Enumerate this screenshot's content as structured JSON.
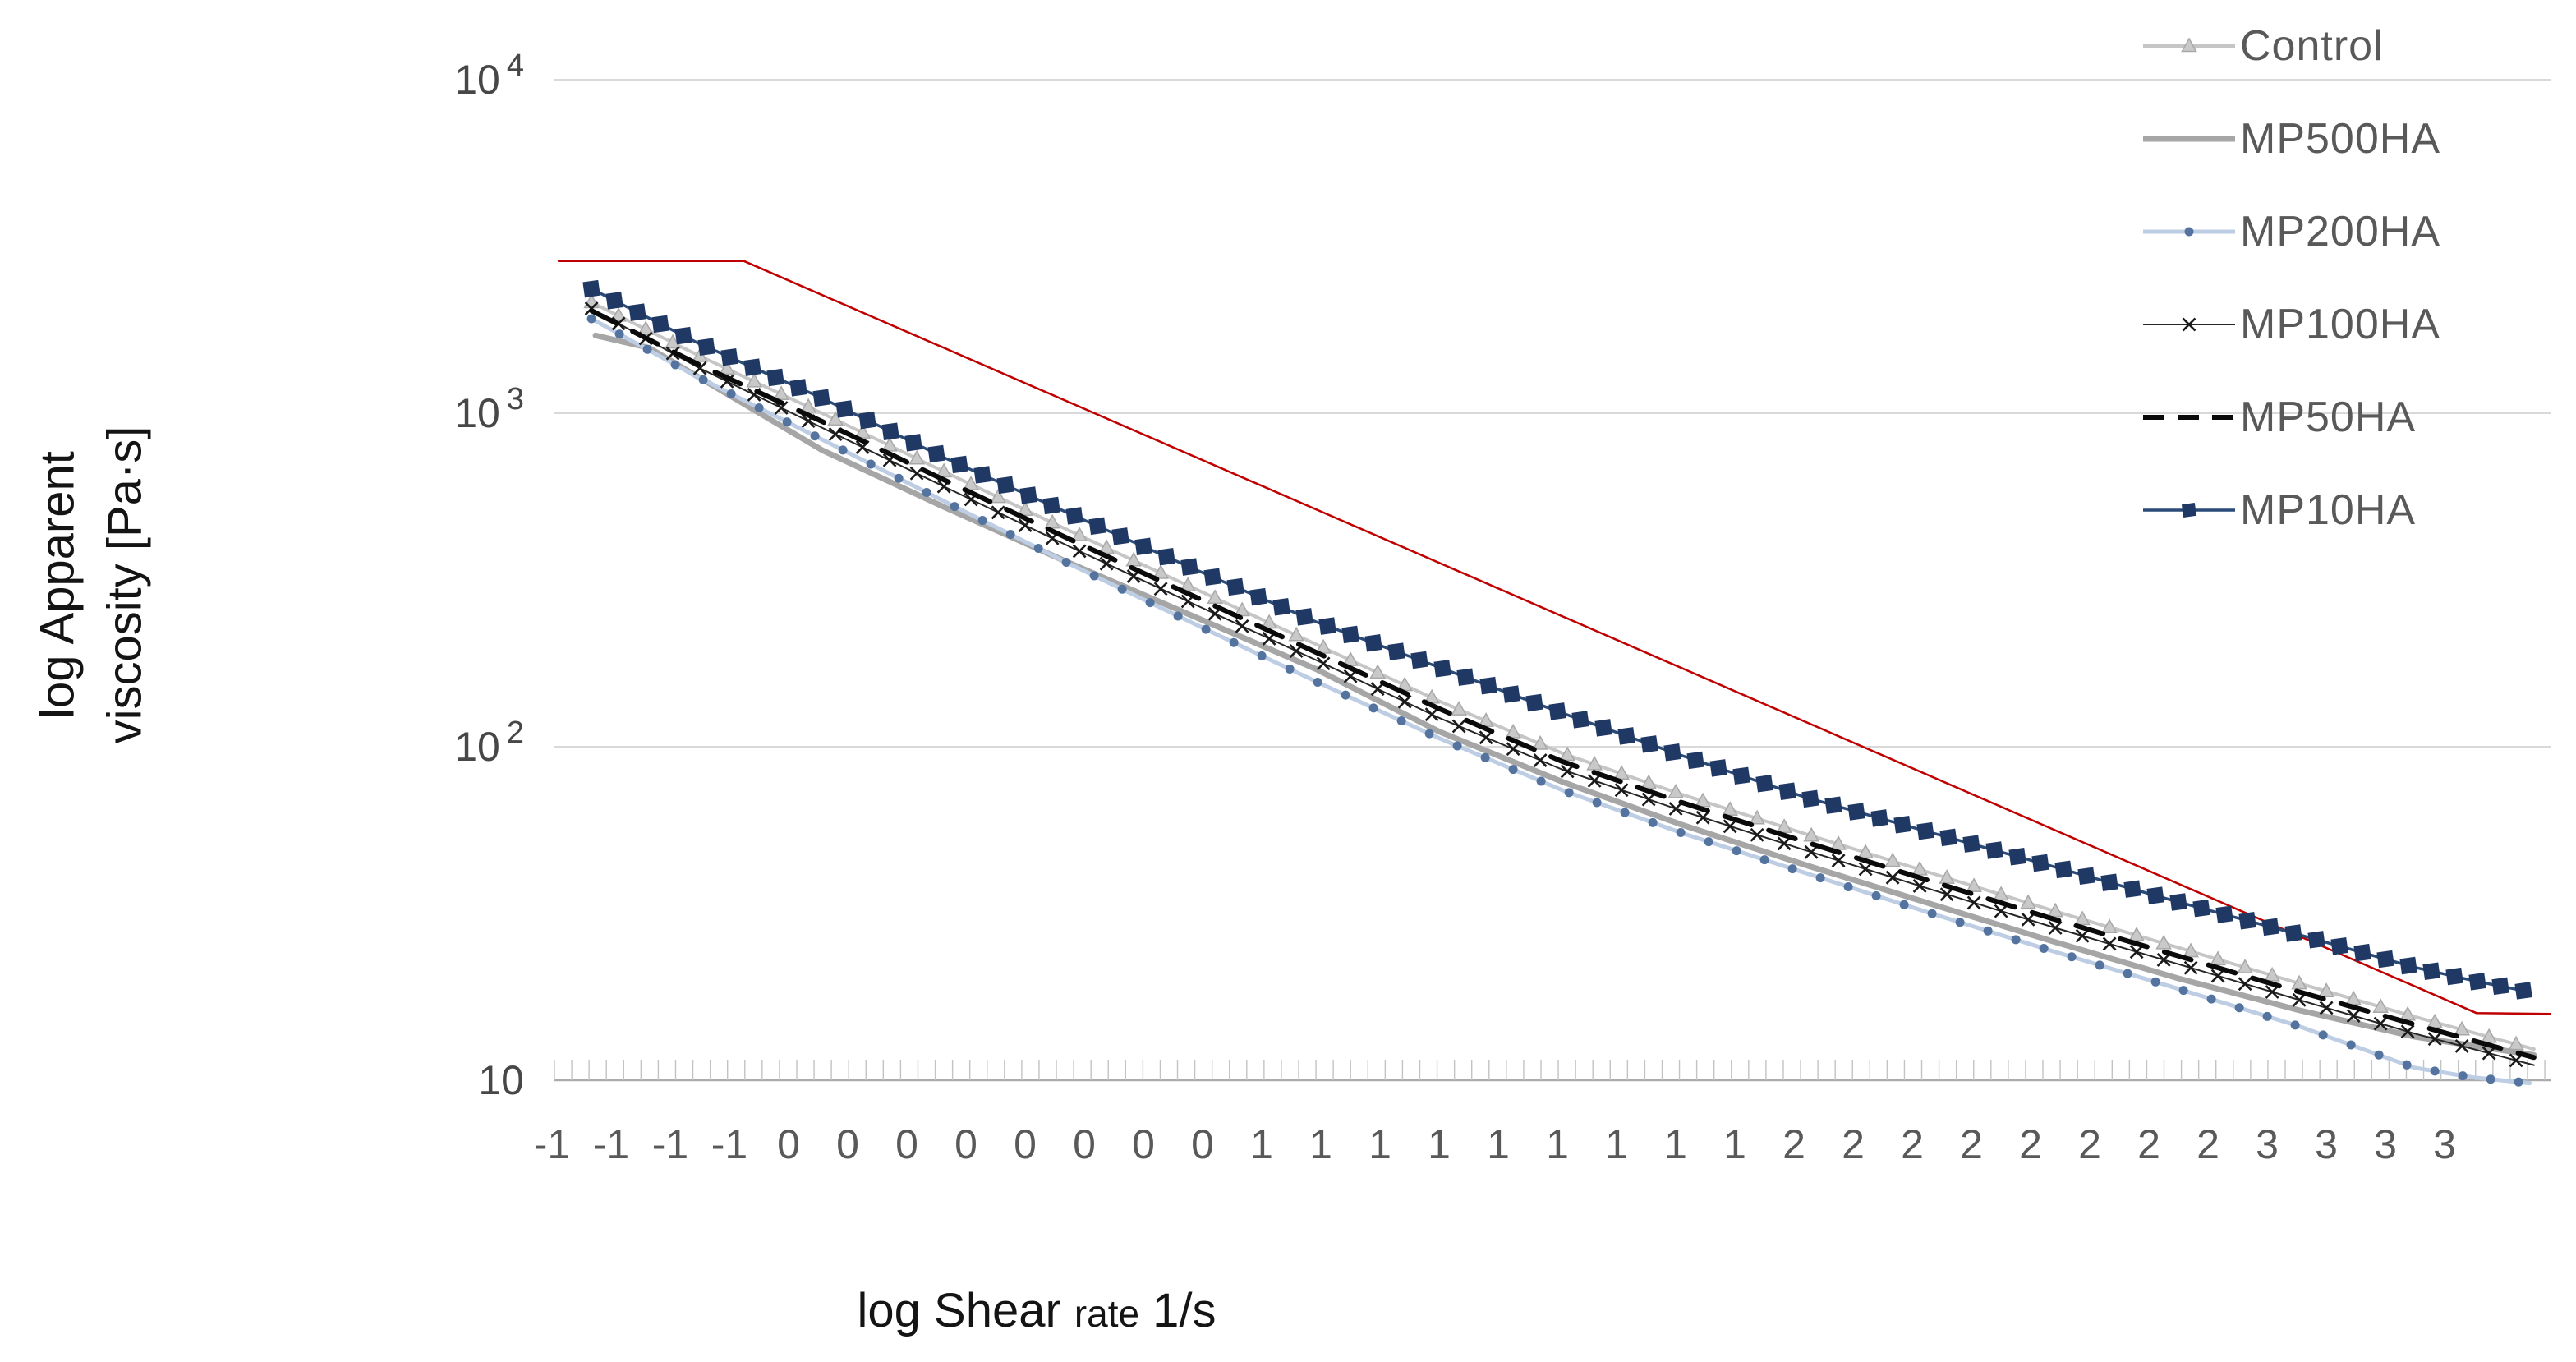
{
  "chart": {
    "y_axis": {
      "title_lines": [
        "log Apparent",
        "viscosity [Pa·s]"
      ],
      "tick_labels": [
        {
          "base": "10",
          "exp": "4"
        },
        {
          "base": "10",
          "exp": "3"
        },
        {
          "base": "10",
          "exp": "2"
        },
        {
          "base": "10",
          "exp": ""
        }
      ]
    },
    "x_axis": {
      "title_prefix": "log Shear",
      "title_small": "rate",
      "title_suffix": "1/s",
      "tick_labels": [
        "-1",
        "-1",
        "-1",
        "-1",
        "0",
        "0",
        "0",
        "0",
        "0",
        "0",
        "0",
        "0",
        "1",
        "1",
        "1",
        "1",
        "1",
        "1",
        "1",
        "1",
        "1",
        "2",
        "2",
        "2",
        "2",
        "2",
        "2",
        "2",
        "2",
        "3",
        "3",
        "3",
        "3"
      ]
    },
    "legend": [
      "Control",
      "MP500HA",
      "MP200HA",
      "MP100HA",
      "MP50HA",
      "MP10HA"
    ],
    "colors": {
      "grid": "#D9D9D9",
      "axis_line": "#ABABAB",
      "minor_tick": "#C3C3C3",
      "tick_text": "#595959",
      "title_text": "#141414",
      "reference_red": "#C00000"
    }
  },
  "chart_data": {
    "type": "line",
    "title": "",
    "xlabel": "log Shear rate 1/s",
    "ylabel": "log Apparent viscosity [Pa·s]",
    "y_scale": "log10",
    "ylim": [
      10,
      10000
    ],
    "xlim_log_shear": [
      -1.35,
      3.6
    ],
    "grid": "horizontal decade gridlines only",
    "legend_position": "top-right",
    "x_axis_note": "category tick labels are rounded log10(shear rate) values",
    "series": [
      {
        "name": "(unlabeled red reference line)",
        "in_legend": false,
        "color": "#C00000",
        "line": "solid",
        "width": 2.5,
        "marker": "none",
        "log_shear_rate": [
          -1.25,
          -0.8,
          3.41,
          3.59
        ],
        "viscosity_pa_s": [
          2860,
          2860,
          15.9,
          15.8
        ]
      },
      {
        "name": "Control",
        "in_legend": true,
        "color": "#C6C6C6",
        "line": "solid",
        "width": 4,
        "marker": "triangle",
        "marker_color": "#C9C9C9",
        "marker_edge": "#A8A8A8",
        "marker_size": 9,
        "marker_step_px": 33,
        "log_shear_rate": [
          -1.17,
          -0.91,
          -0.61,
          -0.31,
          -0.01,
          0.29,
          0.59,
          0.89,
          1.19,
          1.48,
          1.78,
          2.08,
          2.38,
          2.68,
          2.98,
          3.26,
          3.55
        ],
        "viscosity_pa_s": [
          2150,
          1490,
          1000,
          665,
          445,
          300,
          203,
          137,
          95.5,
          71.9,
          54.8,
          42,
          32.3,
          25.1,
          19.5,
          15.5,
          12.4
        ]
      },
      {
        "name": "MP500HA",
        "in_legend": true,
        "color": "#A6A6A6",
        "line": "solid",
        "width": 7,
        "marker": "none",
        "log_shear_rate": [
          -1.16,
          -1.03,
          -0.61,
          -0.31,
          -0.01,
          0.29,
          0.59,
          0.89,
          1.19,
          1.48,
          1.78,
          2.08,
          2.38,
          2.68,
          2.98,
          3.26,
          3.55
        ],
        "viscosity_pa_s": [
          1710,
          1570,
          775,
          521,
          356,
          247,
          171,
          111,
          78.4,
          58.3,
          44.2,
          33.9,
          26.1,
          20.3,
          16.2,
          13.5,
          11.9
        ]
      },
      {
        "name": "MP200HA",
        "in_legend": true,
        "color": "#BDCDE4",
        "line": "solid",
        "width": 5,
        "marker": "circle",
        "marker_color": "#54749F",
        "marker_size": 5.5,
        "marker_step_px": 34,
        "log_shear_rate": [
          -1.17,
          -0.91,
          -0.61,
          -0.31,
          -0.01,
          0.29,
          0.59,
          0.89,
          1.19,
          1.48,
          1.78,
          2.08,
          2.38,
          2.68,
          2.98,
          3.26,
          3.4,
          3.54
        ],
        "viscosity_pa_s": [
          1920,
          1280,
          834,
          542,
          354,
          235,
          157,
          106,
          74,
          55.1,
          41.8,
          31.8,
          24.4,
          18.9,
          14.5,
          10.9,
          10.2,
          9.8
        ]
      },
      {
        "name": "MP100HA",
        "in_legend": true,
        "color": "#262626",
        "line": "solid",
        "width": 2,
        "marker": "x",
        "marker_color": "#1A1A1A",
        "marker_size": 7.5,
        "marker_step_px": 33,
        "log_shear_rate": [
          -1.17,
          -0.91,
          -0.61,
          -0.31,
          -0.01,
          0.29,
          0.59,
          0.89,
          1.19,
          1.48,
          1.78,
          2.08,
          2.38,
          2.68,
          2.98,
          3.26,
          3.55
        ],
        "viscosity_pa_s": [
          2060,
          1370,
          905,
          600,
          399,
          269,
          182,
          122,
          85.3,
          64.2,
          48.9,
          37.5,
          28.8,
          22.4,
          17.4,
          13.8,
          11.1
        ]
      },
      {
        "name": "MP50HA",
        "in_legend": true,
        "color": "#0A0A0A",
        "line": "dashed",
        "dash": [
          34,
          22
        ],
        "width": 6,
        "marker": "none",
        "log_shear_rate": [
          -1.17,
          -0.91,
          -0.61,
          -0.31,
          -0.01,
          0.29,
          0.59,
          0.89,
          1.19,
          1.48,
          1.78,
          2.08,
          2.38,
          2.68,
          2.98,
          3.26,
          3.55
        ],
        "viscosity_pa_s": [
          2030,
          1400,
          945,
          628,
          420,
          284,
          192,
          130,
          90.2,
          68,
          51.8,
          39.7,
          30.5,
          23.7,
          18.4,
          14.7,
          11.7
        ]
      },
      {
        "name": "MP10HA",
        "in_legend": true,
        "color": "#2A4A78",
        "line": "solid",
        "width": 3.5,
        "marker": "square",
        "marker_color": "#1F3864",
        "marker_size": 19,
        "marker_step_px": 28,
        "log_shear_rate": [
          -1.17,
          -0.91,
          -0.61,
          -0.31,
          -0.01,
          0.29,
          0.59,
          0.89,
          1.19,
          1.48,
          1.78,
          2.08,
          2.38,
          2.68,
          2.98,
          3.26,
          3.41,
          3.54
        ],
        "viscosity_pa_s": [
          2360,
          1620,
          1110,
          733,
          501,
          343,
          237,
          173,
          126,
          94,
          70.5,
          55.5,
          43.8,
          34.4,
          27.3,
          21.8,
          19.8,
          18.4
        ]
      }
    ]
  }
}
